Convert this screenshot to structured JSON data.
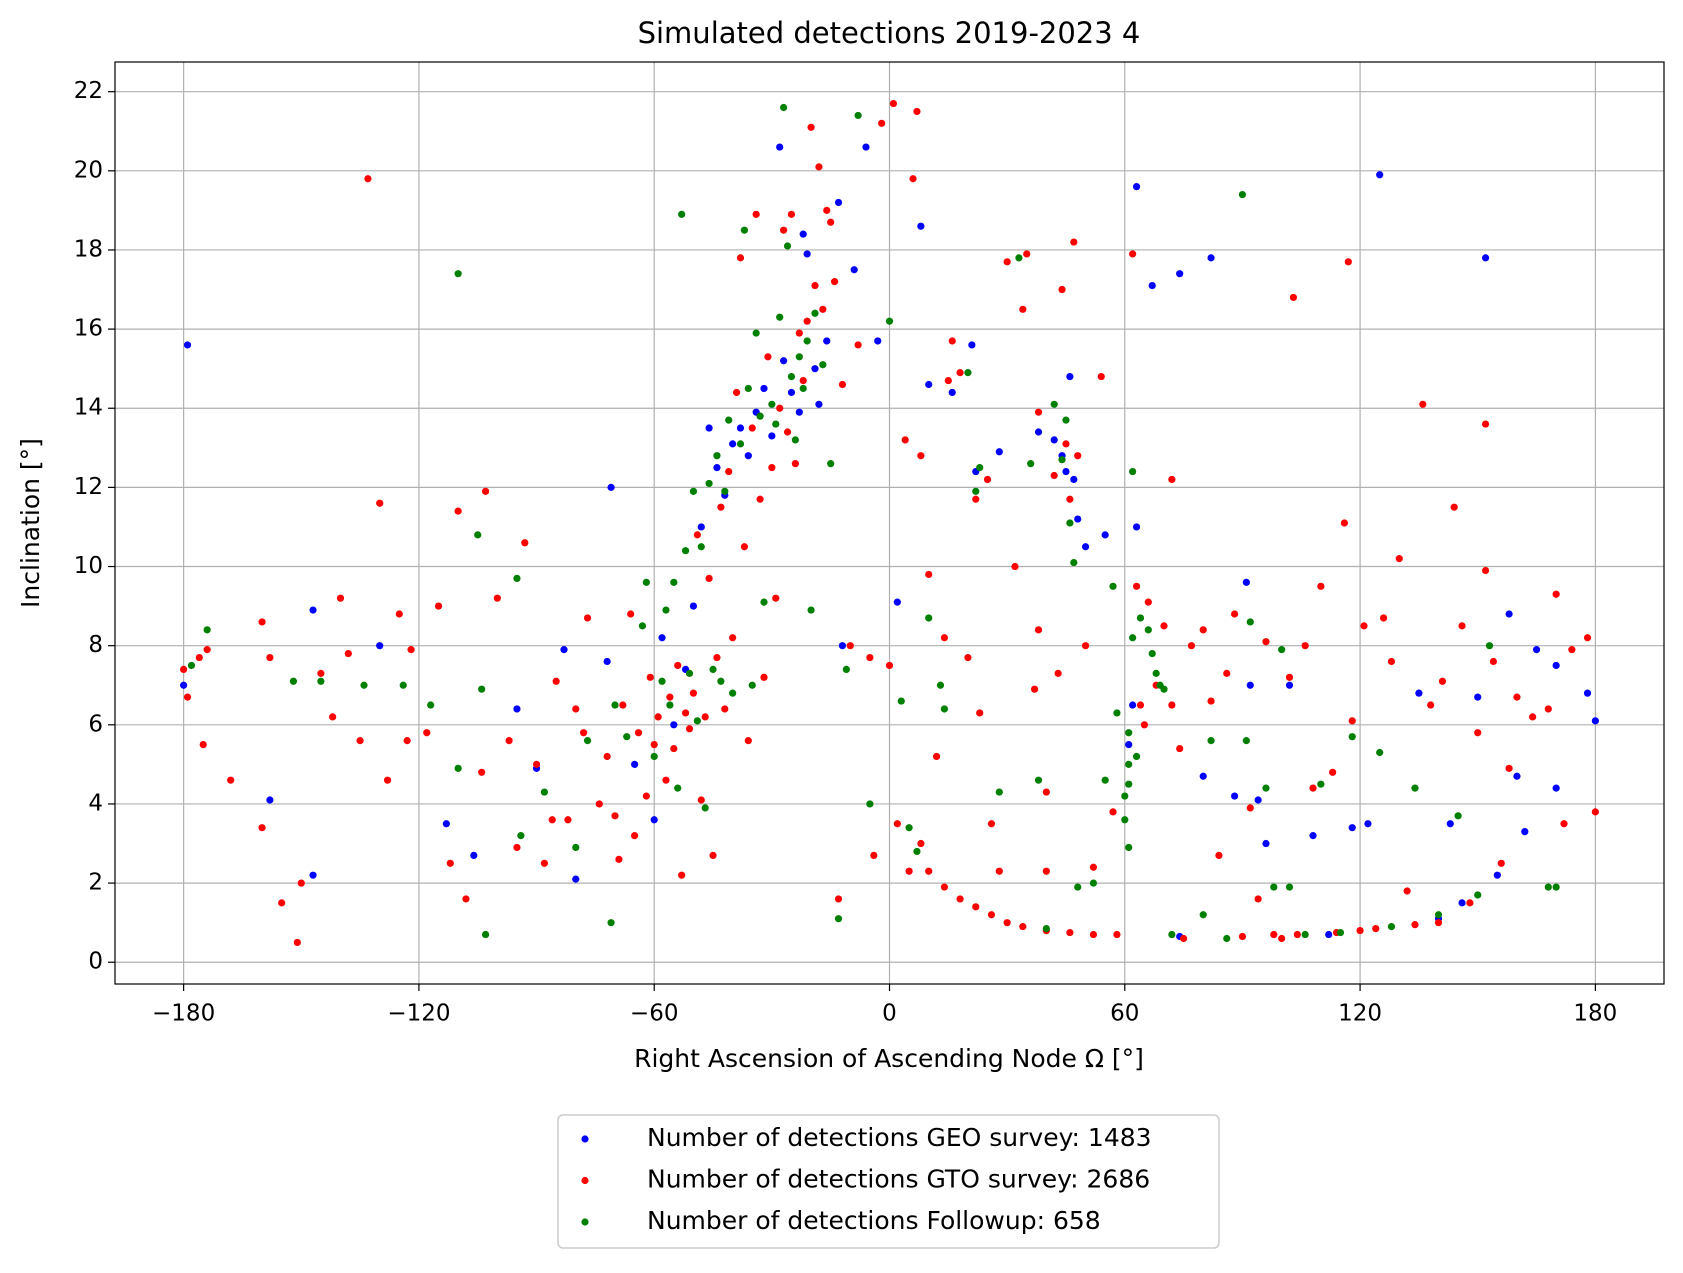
{
  "chart_data": {
    "type": "scatter",
    "title": "Simulated detections 2019-2023 4",
    "x_label": "Right Ascension of Ascending Node Ω [°]",
    "y_label": "Inclination [°]",
    "xlim": [
      -197.5,
      197.5
    ],
    "ylim": [
      -0.55,
      22.75
    ],
    "xticks": [
      {
        "value": -180,
        "label": "−180"
      },
      {
        "value": -120,
        "label": "−120"
      },
      {
        "value": -60,
        "label": "−60"
      },
      0,
      60,
      120,
      180
    ],
    "yticks": [
      0,
      2,
      4,
      6,
      8,
      10,
      12,
      14,
      16,
      18,
      20,
      22
    ],
    "grid": true,
    "legend": "bottom",
    "series": [
      {
        "name": "Number of detections GEO survey: 1483",
        "color": "#0000ff",
        "x": [
          -180,
          -179,
          -147,
          -147,
          -158,
          -130,
          -113,
          -106,
          -95,
          -90,
          -83,
          -80,
          -72,
          -71,
          -65,
          -60,
          -58,
          -55,
          -52,
          -50,
          -48,
          -46,
          -44,
          -42,
          -40,
          -38,
          -36,
          -34,
          -32,
          -30,
          -28,
          -27,
          -25,
          -23,
          -22,
          -21,
          -19,
          -18,
          -16,
          -13,
          -12,
          -9,
          -6,
          -3,
          2,
          8,
          10,
          16,
          21,
          22,
          28,
          38,
          42,
          44,
          45,
          46,
          47,
          48,
          50,
          55,
          61,
          62,
          63,
          63,
          67,
          74,
          74,
          80,
          82,
          88,
          91,
          92,
          94,
          96,
          102,
          108,
          118,
          122,
          125,
          135,
          143,
          150,
          152,
          155,
          158,
          160,
          162,
          165,
          170,
          170,
          178,
          180,
          146,
          140,
          112
        ],
        "values": [
          7,
          15.6,
          8.9,
          2.2,
          4.1,
          8,
          3.5,
          2.7,
          6.4,
          4.9,
          7.9,
          2.1,
          7.6,
          12,
          5,
          3.6,
          8.2,
          6,
          7.4,
          9,
          11,
          13.5,
          12.5,
          11.8,
          13.1,
          13.5,
          12.8,
          13.9,
          14.5,
          13.3,
          20.6,
          15.2,
          14.4,
          13.9,
          18.4,
          17.9,
          15,
          14.1,
          15.7,
          19.2,
          8,
          17.5,
          20.6,
          15.7,
          9.1,
          18.6,
          14.6,
          14.4,
          15.6,
          12.4,
          12.9,
          13.4,
          13.2,
          12.8,
          12.4,
          14.8,
          12.2,
          11.2,
          10.5,
          10.8,
          5.5,
          6.5,
          19.6,
          11,
          17.1,
          17.4,
          0.65,
          4.7,
          17.8,
          4.2,
          9.6,
          7,
          4.1,
          3,
          7,
          3.2,
          3.4,
          3.5,
          19.9,
          6.8,
          3.5,
          6.7,
          17.8,
          2.2,
          8.8,
          4.7,
          3.3,
          7.9,
          7.5,
          4.4,
          6.8,
          6.1,
          1.5,
          1.1,
          0.7
        ]
      },
      {
        "name": "Number of detections GTO survey: 2686",
        "color": "#ff0000",
        "x": [
          -180,
          -179,
          -176,
          -174,
          -175,
          -168,
          -160,
          -160,
          -158,
          -155,
          -151,
          -150,
          -145,
          -142,
          -140,
          -138,
          -135,
          -133,
          -130,
          -128,
          -125,
          -123,
          -122,
          -118,
          -115,
          -112,
          -110,
          -108,
          -104,
          -103,
          -100,
          -97,
          -95,
          -93,
          -90,
          -88,
          -86,
          -85,
          -82,
          -80,
          -78,
          -77,
          -74,
          -72,
          -70,
          -69,
          -68,
          -66,
          -65,
          -64,
          -62,
          -61,
          -60,
          -59,
          -57,
          -56,
          -55,
          -54,
          -53,
          -52,
          -51,
          -50,
          -49,
          -48,
          -47,
          -46,
          -45,
          -44,
          -43,
          -42,
          -41,
          -40,
          -39,
          -38,
          -37,
          -36,
          -35,
          -34,
          -33,
          -32,
          -31,
          -30,
          -29,
          -28,
          -27,
          -26,
          -25,
          -24,
          -23,
          -22,
          -21,
          -20,
          -19,
          -18,
          -17,
          -16,
          -15,
          -14,
          -13,
          -12,
          -10,
          -8,
          -5,
          -4,
          -2,
          0,
          1,
          2,
          4,
          5,
          6,
          7,
          8,
          10,
          12,
          14,
          15,
          16,
          18,
          20,
          22,
          23,
          25,
          26,
          28,
          30,
          32,
          34,
          35,
          37,
          38,
          38,
          40,
          40,
          42,
          43,
          44,
          45,
          46,
          47,
          48,
          50,
          52,
          54,
          57,
          58,
          62,
          63,
          64,
          65,
          66,
          68,
          70,
          72,
          72,
          74,
          75,
          77,
          80,
          82,
          84,
          86,
          88,
          90,
          92,
          94,
          96,
          98,
          100,
          102,
          103,
          104,
          106,
          108,
          110,
          113,
          114,
          116,
          117,
          118,
          120,
          121,
          124,
          126,
          128,
          130,
          132,
          134,
          136,
          138,
          140,
          141,
          144,
          146,
          148,
          150,
          152,
          152,
          154,
          156,
          158,
          160,
          164,
          168,
          170,
          172,
          174,
          178,
          180,
          8,
          10,
          14,
          18,
          22,
          26,
          30,
          34,
          40,
          46,
          52
        ],
        "values": [
          7.4,
          6.7,
          7.7,
          7.9,
          5.5,
          4.6,
          3.4,
          8.6,
          7.7,
          1.5,
          0.5,
          2,
          7.3,
          6.2,
          9.2,
          7.8,
          5.6,
          19.8,
          11.6,
          4.6,
          8.8,
          5.6,
          7.9,
          5.8,
          9,
          2.5,
          11.4,
          1.6,
          4.8,
          11.9,
          9.2,
          5.6,
          2.9,
          10.6,
          5,
          2.5,
          3.6,
          7.1,
          3.6,
          6.4,
          5.8,
          8.7,
          4,
          5.2,
          3.7,
          2.6,
          6.5,
          8.8,
          3.2,
          5.8,
          4.2,
          7.2,
          5.5,
          6.2,
          4.6,
          6.7,
          5.4,
          7.5,
          2.2,
          6.3,
          5.9,
          6.8,
          10.8,
          4.1,
          6.2,
          9.7,
          2.7,
          7.7,
          11.5,
          6.4,
          12.4,
          8.2,
          14.4,
          17.8,
          10.5,
          5.6,
          13.5,
          18.9,
          11.7,
          7.2,
          15.3,
          12.5,
          9.2,
          14,
          18.5,
          13.4,
          18.9,
          12.6,
          15.9,
          14.7,
          16.2,
          21.1,
          17.1,
          20.1,
          16.5,
          19,
          18.7,
          17.2,
          1.6,
          14.6,
          8,
          15.6,
          7.7,
          2.7,
          21.2,
          7.5,
          21.7,
          3.5,
          13.2,
          2.3,
          19.8,
          21.5,
          12.8,
          9.8,
          5.2,
          8.2,
          14.7,
          15.7,
          14.9,
          7.7,
          11.7,
          6.3,
          12.2,
          3.5,
          2.3,
          17.7,
          10,
          16.5,
          17.9,
          6.9,
          8.4,
          13.9,
          4.3,
          2.3,
          12.3,
          7.3,
          17,
          13.1,
          11.7,
          18.2,
          12.8,
          8,
          2.4,
          14.8,
          3.8,
          0.7,
          17.9,
          9.5,
          6.5,
          6,
          9.1,
          7,
          8.5,
          12.2,
          6.5,
          5.4,
          0.6,
          8,
          8.4,
          6.6,
          2.7,
          7.3,
          8.8,
          0.65,
          3.9,
          1.6,
          8.1,
          0.7,
          0.6,
          7.2,
          16.8,
          0.7,
          8,
          4.4,
          9.5,
          4.8,
          0.75,
          11.1,
          17.7,
          6.1,
          0.8,
          8.5,
          0.85,
          8.7,
          7.6,
          10.2,
          1.8,
          0.95,
          14.1,
          6.5,
          1,
          7.1,
          11.5,
          8.5,
          1.5,
          5.8,
          13.6,
          9.9,
          7.6,
          2.5,
          4.9,
          6.7,
          6.2,
          6.4,
          9.3,
          3.5,
          7.9,
          8.2,
          3.8,
          3,
          2.3,
          1.9,
          1.6,
          1.4,
          1.2,
          1,
          0.9,
          0.8,
          0.75,
          0.7
        ]
      },
      {
        "name": "Number of detections Followup: 658",
        "color": "#008000",
        "x": [
          -178,
          -174,
          -152,
          -145,
          -134,
          -124,
          -117,
          -110,
          -110,
          -105,
          -104,
          -103,
          -95,
          -94,
          -88,
          -80,
          -77,
          -71,
          -70,
          -67,
          -63,
          -62,
          -60,
          -58,
          -57,
          -56,
          -55,
          -54,
          -53,
          -52,
          -51,
          -50,
          -49,
          -48,
          -47,
          -46,
          -45,
          -44,
          -43,
          -42,
          -41,
          -40,
          -38,
          -37,
          -36,
          -35,
          -34,
          -33,
          -32,
          -30,
          -29,
          -28,
          -27,
          -26,
          -25,
          -24,
          -23,
          -22,
          -21,
          -20,
          -19,
          -17,
          -15,
          -13,
          -11,
          -8,
          -5,
          0,
          3,
          5,
          7,
          10,
          13,
          14,
          20,
          22,
          23,
          28,
          33,
          36,
          38,
          40,
          42,
          44,
          45,
          46,
          47,
          48,
          52,
          55,
          57,
          58,
          60,
          61,
          62,
          62,
          63,
          64,
          66,
          67,
          68,
          69,
          70,
          72,
          80,
          82,
          86,
          90,
          91,
          92,
          96,
          98,
          100,
          102,
          106,
          110,
          115,
          118,
          125,
          128,
          134,
          140,
          145,
          150,
          153,
          168,
          170,
          61,
          61,
          61,
          60
        ],
        "values": [
          7.5,
          8.4,
          7.1,
          7.1,
          7,
          7,
          6.5,
          17.4,
          4.9,
          10.8,
          6.9,
          0.7,
          9.7,
          3.2,
          4.3,
          2.9,
          5.6,
          1,
          6.5,
          5.7,
          8.5,
          9.6,
          5.2,
          7.1,
          8.9,
          6.5,
          9.6,
          4.4,
          18.9,
          10.4,
          7.3,
          11.9,
          6.1,
          10.5,
          3.9,
          12.1,
          7.4,
          12.8,
          7.1,
          11.9,
          13.7,
          6.8,
          13.1,
          18.5,
          14.5,
          7,
          15.9,
          13.8,
          9.1,
          14.1,
          13.6,
          16.3,
          21.6,
          18.1,
          14.8,
          13.2,
          15.3,
          14.5,
          15.7,
          8.9,
          16.4,
          15.1,
          12.6,
          1.1,
          7.4,
          21.4,
          4,
          16.2,
          6.6,
          3.4,
          2.8,
          8.7,
          7,
          6.4,
          14.9,
          11.9,
          12.5,
          4.3,
          17.8,
          12.6,
          4.6,
          0.85,
          14.1,
          12.7,
          13.7,
          11.1,
          10.1,
          1.9,
          2,
          4.6,
          9.5,
          6.3,
          4.2,
          2.9,
          12.4,
          8.2,
          5.2,
          8.7,
          8.4,
          7.8,
          7.3,
          7,
          6.9,
          0.7,
          1.2,
          5.6,
          0.6,
          19.4,
          5.6,
          8.6,
          4.4,
          1.9,
          7.9,
          1.9,
          0.7,
          4.5,
          0.75,
          5.7,
          5.3,
          0.9,
          4.4,
          1.2,
          3.7,
          1.7,
          8,
          1.9,
          1.9,
          5.8,
          5,
          4.5,
          3.6
        ]
      }
    ]
  }
}
